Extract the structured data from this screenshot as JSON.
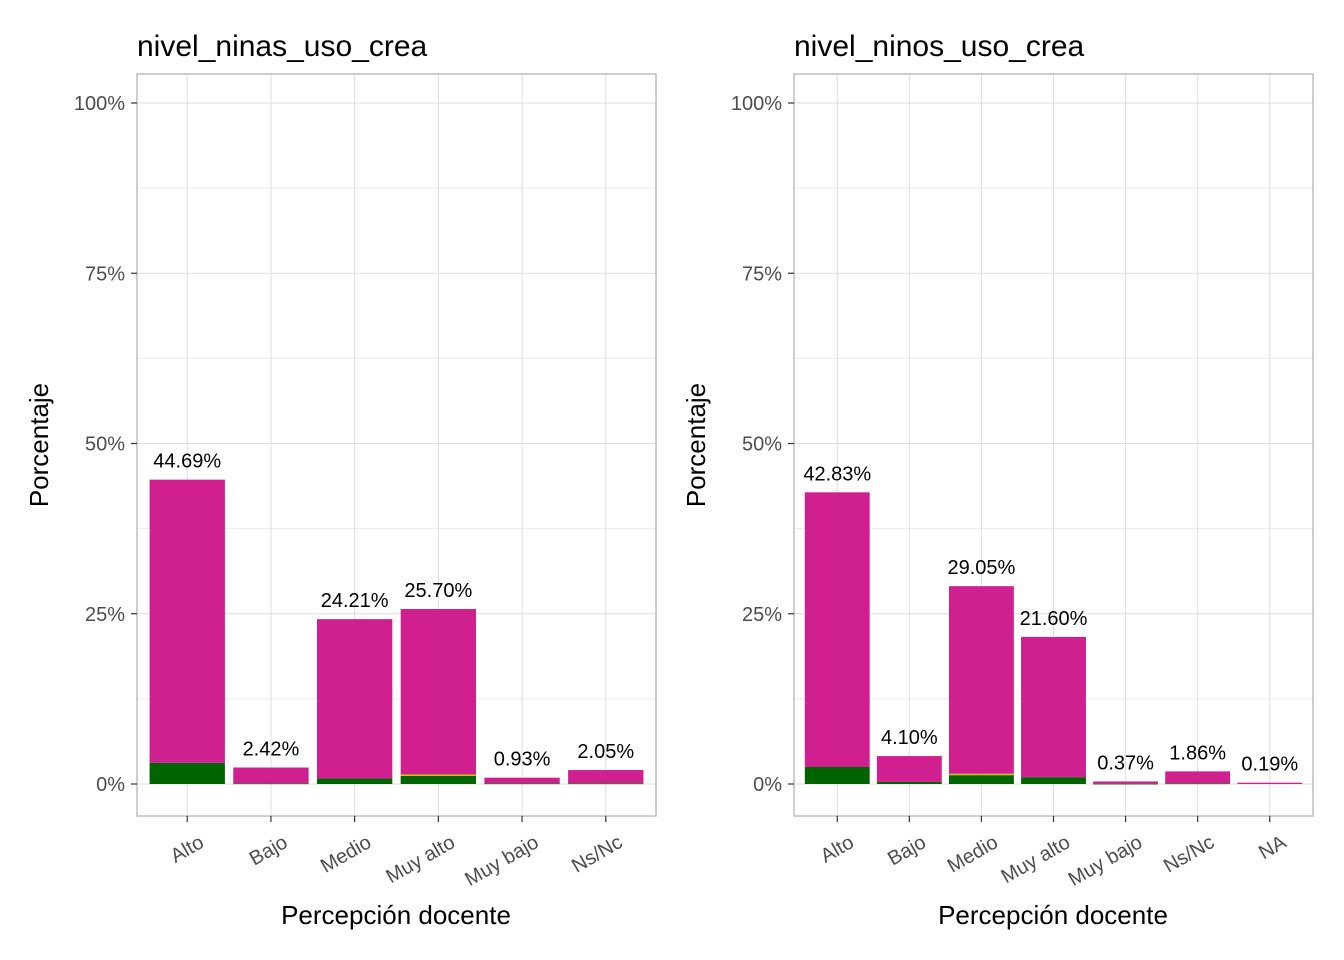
{
  "chart_data": [
    {
      "type": "bar",
      "title": "nivel_ninas_uso_crea",
      "xlabel": "Percepción docente",
      "ylabel": "Porcentaje",
      "ylim": [
        0,
        100
      ],
      "y_ticks": [
        0,
        25,
        50,
        75,
        100
      ],
      "y_tick_labels": [
        "0%",
        "25%",
        "50%",
        "75%",
        "100%"
      ],
      "categories": [
        "Alto",
        "Bajo",
        "Medio",
        "Muy alto",
        "Muy bajo",
        "Ns/Nc"
      ],
      "values": [
        44.69,
        2.42,
        24.21,
        25.7,
        0.93,
        2.05
      ],
      "value_labels": [
        "44.69%",
        "2.42%",
        "24.21%",
        "25.70%",
        "0.93%",
        "2.05%"
      ],
      "series": [
        {
          "name": "green",
          "color": "#006400",
          "values": [
            3.1,
            0.1,
            0.8,
            1.2,
            0.1,
            0.1
          ]
        },
        {
          "name": "yellow",
          "color": "#d4c400",
          "values": [
            0,
            0,
            0,
            0.2,
            0,
            0
          ]
        },
        {
          "name": "magenta",
          "color": "#d01f8e",
          "values": [
            41.59,
            2.32,
            23.41,
            24.3,
            0.83,
            1.95
          ]
        }
      ]
    },
    {
      "type": "bar",
      "title": "nivel_ninos_uso_crea",
      "xlabel": "Percepción docente",
      "ylabel": "Porcentaje",
      "ylim": [
        0,
        100
      ],
      "y_ticks": [
        0,
        25,
        50,
        75,
        100
      ],
      "y_tick_labels": [
        "0%",
        "25%",
        "50%",
        "75%",
        "100%"
      ],
      "categories": [
        "Alto",
        "Bajo",
        "Medio",
        "Muy alto",
        "Muy bajo",
        "Ns/Nc",
        "NA"
      ],
      "values": [
        42.83,
        4.1,
        29.05,
        21.6,
        0.37,
        1.86,
        0.19
      ],
      "value_labels": [
        "42.83%",
        "4.10%",
        "29.05%",
        "21.60%",
        "0.37%",
        "1.86%",
        "0.19%"
      ],
      "series": [
        {
          "name": "green",
          "color": "#006400",
          "values": [
            2.5,
            0.3,
            1.3,
            1.0,
            0.05,
            0.1,
            0
          ]
        },
        {
          "name": "yellow",
          "color": "#d4c400",
          "values": [
            0,
            0,
            0.2,
            0,
            0,
            0,
            0
          ]
        },
        {
          "name": "magenta",
          "color": "#d01f8e",
          "values": [
            40.33,
            3.8,
            27.55,
            20.6,
            0.32,
            1.76,
            0.19
          ]
        }
      ]
    }
  ]
}
